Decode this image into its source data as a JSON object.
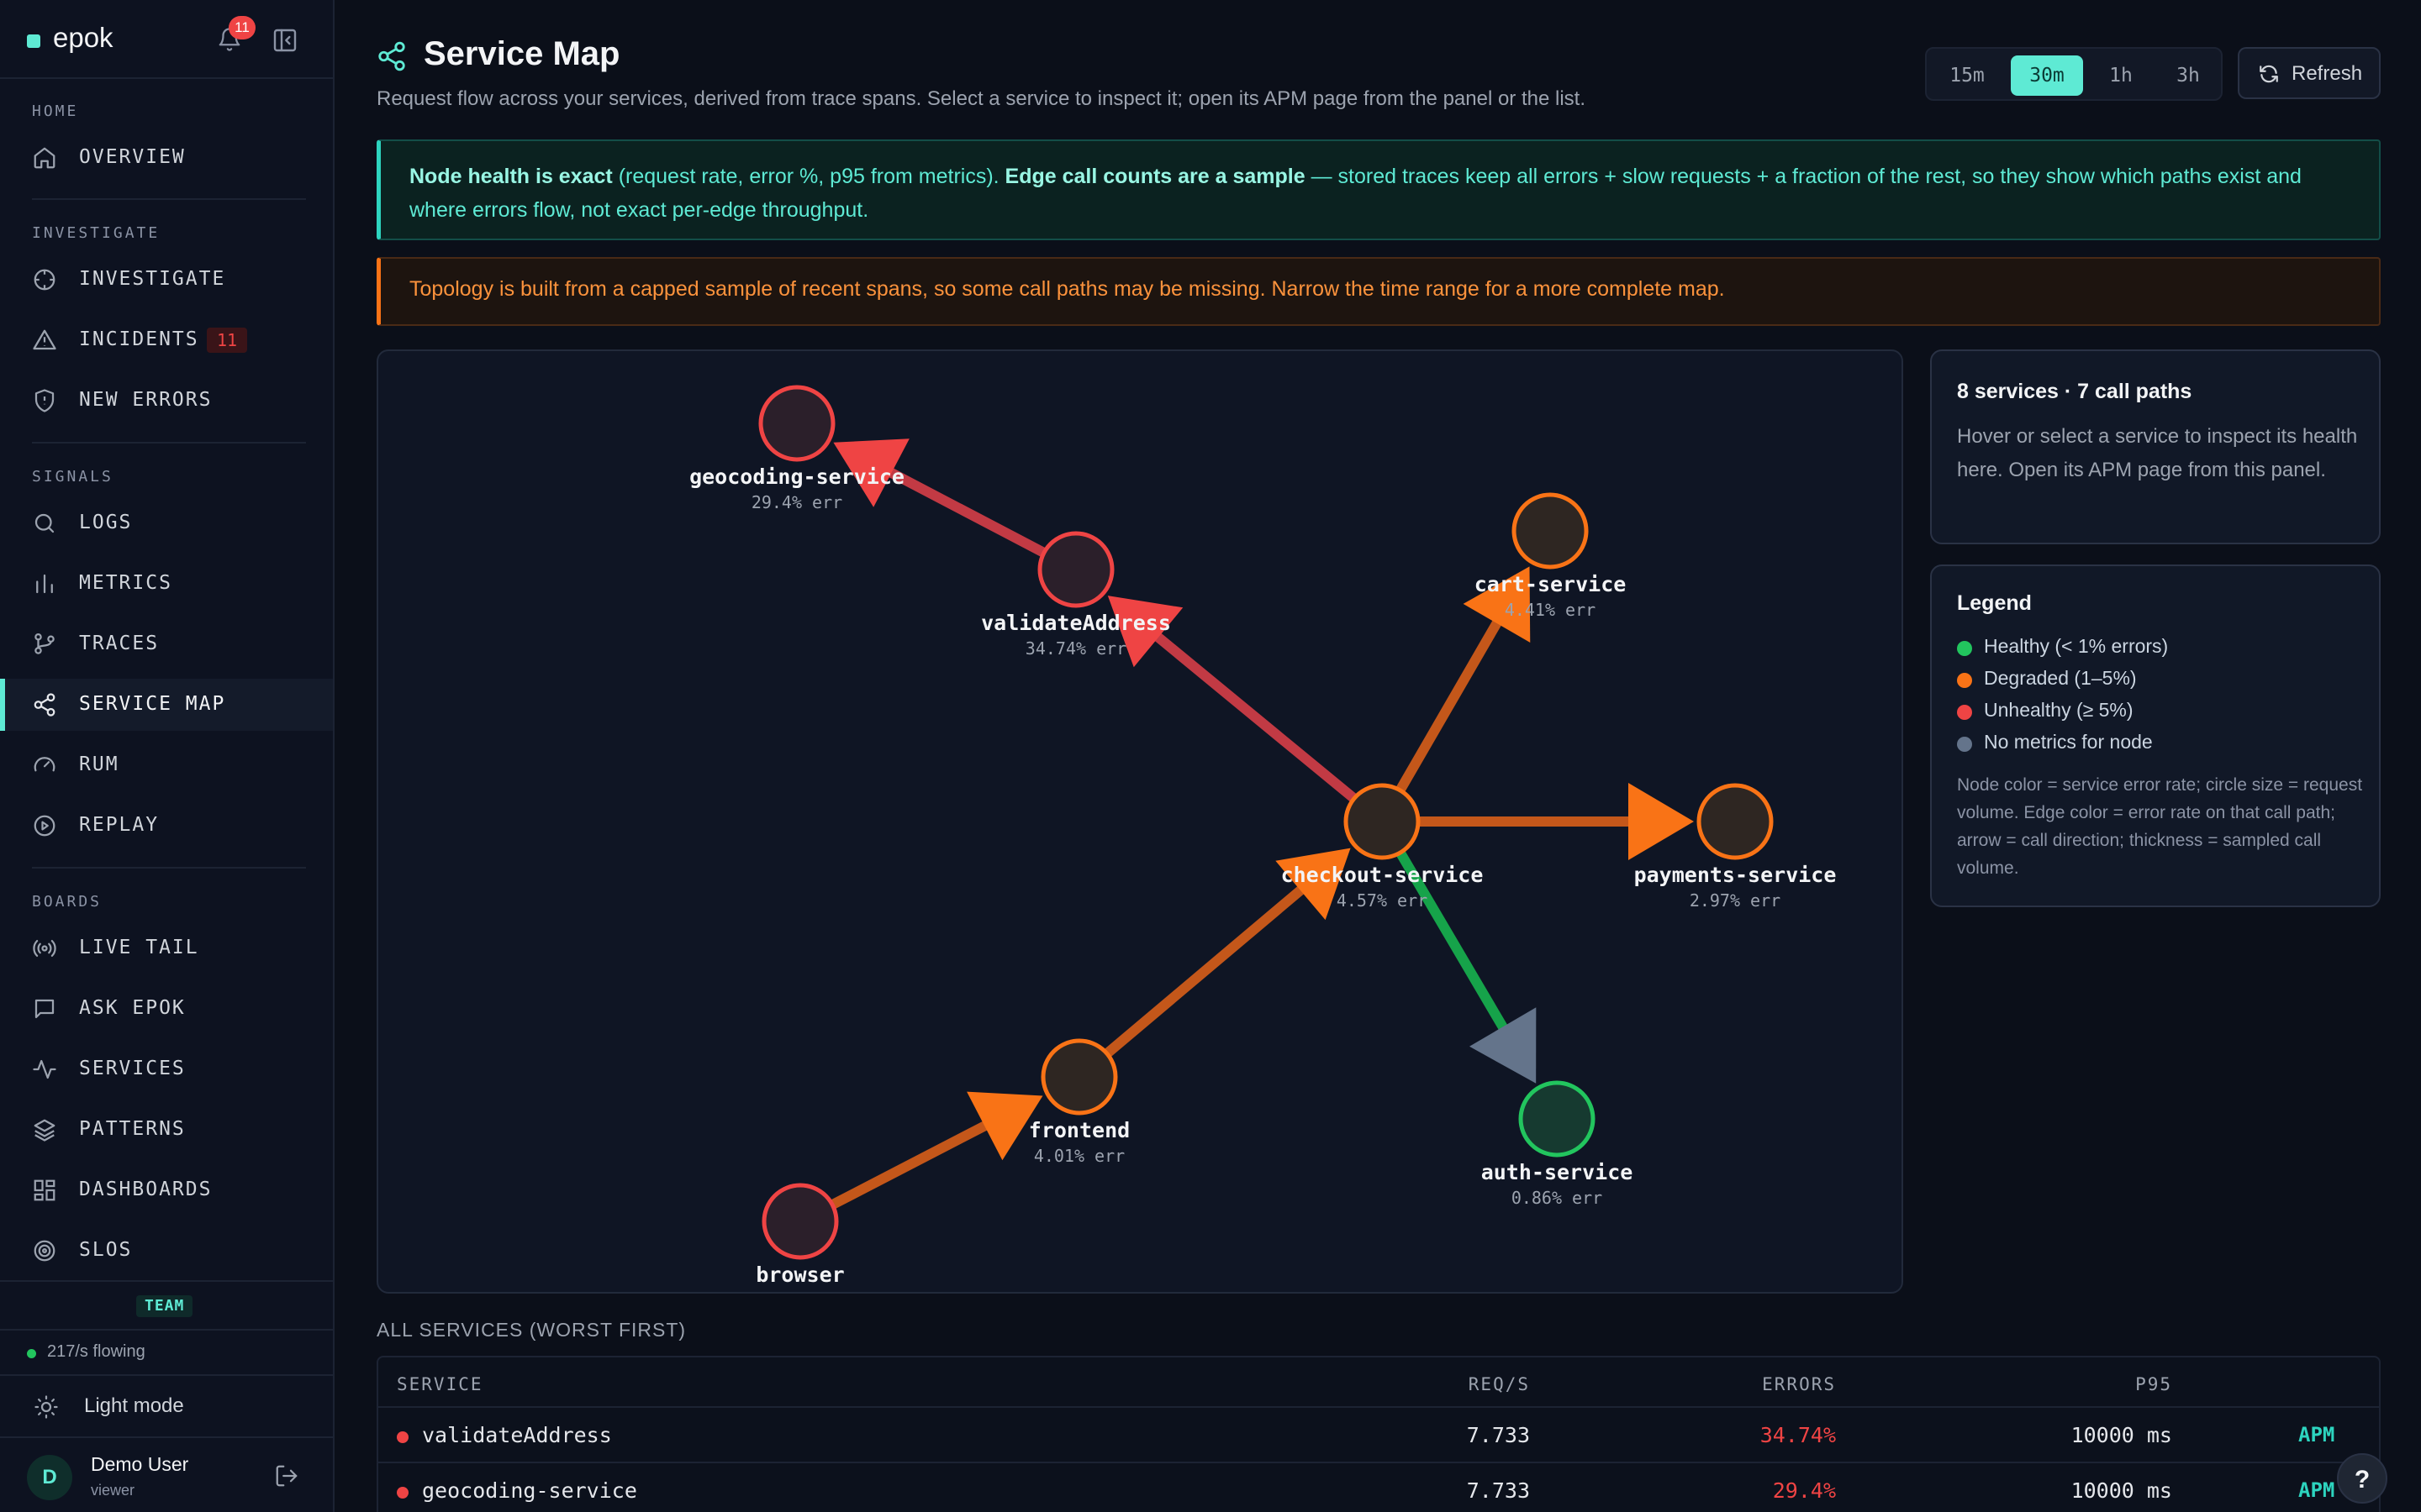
{
  "app": {
    "name": "epok",
    "notification_count": "11"
  },
  "sidebar": {
    "sections": [
      {
        "label": "HOME",
        "items": [
          {
            "label": "OVERVIEW",
            "icon": "home-icon"
          }
        ]
      },
      {
        "label": "INVESTIGATE",
        "items": [
          {
            "label": "INVESTIGATE",
            "icon": "crosshair-icon"
          },
          {
            "label": "INCIDENTS",
            "icon": "alert-triangle-icon",
            "badge": "11"
          },
          {
            "label": "NEW ERRORS",
            "icon": "shield-alert-icon"
          }
        ]
      },
      {
        "label": "SIGNALS",
        "items": [
          {
            "label": "LOGS",
            "icon": "search-icon"
          },
          {
            "label": "METRICS",
            "icon": "bar-chart-icon"
          },
          {
            "label": "TRACES",
            "icon": "git-branch-icon"
          },
          {
            "label": "SERVICE MAP",
            "icon": "share-icon",
            "active": true
          },
          {
            "label": "RUM",
            "icon": "gauge-icon"
          },
          {
            "label": "REPLAY",
            "icon": "play-circle-icon"
          }
        ]
      },
      {
        "label": "BOARDS",
        "items": [
          {
            "label": "LIVE TAIL",
            "icon": "radio-icon"
          },
          {
            "label": "ASK EPOK",
            "icon": "message-square-icon"
          },
          {
            "label": "SERVICES",
            "icon": "activity-icon"
          },
          {
            "label": "PATTERNS",
            "icon": "layers-icon"
          },
          {
            "label": "DASHBOARDS",
            "icon": "layout-grid-icon"
          },
          {
            "label": "SLOS",
            "icon": "target-icon"
          }
        ]
      }
    ],
    "team_label": "TEAM",
    "flow_status": "217/s flowing",
    "mode_toggle": "Light mode",
    "user": {
      "initial": "D",
      "name": "Demo User",
      "role": "viewer"
    }
  },
  "header": {
    "title": "Service Map",
    "subtitle": "Request flow across your services, derived from trace spans. Select a service to inspect it; open its APM page from the panel or the list.",
    "ranges": [
      "15m",
      "30m",
      "1h",
      "3h"
    ],
    "active_range": "30m",
    "refresh_label": "Refresh"
  },
  "notices": {
    "exact_strong_1": "Node health is exact",
    "exact_text_1": " (request rate, error %, p95 from metrics). ",
    "exact_strong_2": "Edge call counts are a sample",
    "exact_text_2": " — stored traces keep all errors + slow requests + a fraction of the rest, so they show which paths exist and where errors flow, not exact per-edge throughput.",
    "warning": "Topology is built from a capped sample of recent spans, so some call paths may be missing. Narrow the time range for a more complete map."
  },
  "colors": {
    "healthy": "#22c55e",
    "degraded": "#f97316",
    "unhealthy": "#ef4444",
    "no_metrics": "#64748b",
    "accent": "#5eead4"
  },
  "graph": {
    "nodes": [
      {
        "id": "geocoding-service",
        "label": "geocoding-service",
        "err": "29.4% err",
        "status": "unhealthy"
      },
      {
        "id": "validateAddress",
        "label": "validateAddress",
        "err": "34.74% err",
        "status": "unhealthy"
      },
      {
        "id": "cart-service",
        "label": "cart-service",
        "err": "4.41% err",
        "status": "degraded"
      },
      {
        "id": "checkout-service",
        "label": "checkout-service",
        "err": "4.57% err",
        "status": "degraded"
      },
      {
        "id": "payments-service",
        "label": "payments-service",
        "err": "2.97% err",
        "status": "degraded"
      },
      {
        "id": "frontend",
        "label": "frontend",
        "err": "4.01% err",
        "status": "degraded"
      },
      {
        "id": "auth-service",
        "label": "auth-service",
        "err": "0.86% err",
        "status": "healthy"
      },
      {
        "id": "browser",
        "label": "browser",
        "err": "",
        "status": "unhealthy"
      }
    ],
    "edges": [
      {
        "from": "browser",
        "to": "frontend",
        "status": "degraded"
      },
      {
        "from": "frontend",
        "to": "checkout-service",
        "status": "degraded"
      },
      {
        "from": "checkout-service",
        "to": "validateAddress",
        "status": "unhealthy"
      },
      {
        "from": "validateAddress",
        "to": "geocoding-service",
        "status": "unhealthy"
      },
      {
        "from": "checkout-service",
        "to": "cart-service",
        "status": "degraded"
      },
      {
        "from": "checkout-service",
        "to": "payments-service",
        "status": "degraded"
      },
      {
        "from": "checkout-service",
        "to": "auth-service",
        "status": "healthy",
        "arrow": "no_metrics"
      }
    ]
  },
  "info_panel": {
    "title": "8 services · 7 call paths",
    "body": "Hover or select a service to inspect its health here. Open its APM page from this panel."
  },
  "legend": {
    "title": "Legend",
    "items": [
      {
        "label": "Healthy (< 1% errors)",
        "color": "#22c55e"
      },
      {
        "label": "Degraded (1–5%)",
        "color": "#f97316"
      },
      {
        "label": "Unhealthy (≥ 5%)",
        "color": "#ef4444"
      },
      {
        "label": "No metrics for node",
        "color": "#64748b"
      }
    ],
    "note": "Node color = service error rate; circle size = request volume. Edge color = error rate on that call path; arrow = call direction; thickness = sampled call volume."
  },
  "services_list": {
    "title": "ALL SERVICES (WORST FIRST)",
    "columns": [
      "SERVICE",
      "REQ/S",
      "ERRORS",
      "P95"
    ],
    "rows": [
      {
        "service": "validateAddress",
        "req": "7.733",
        "errors": "34.74%",
        "p95": "10000 ms",
        "link": "APM"
      },
      {
        "service": "geocoding-service",
        "req": "7.733",
        "errors": "29.4%",
        "p95": "10000 ms",
        "link": "APM →"
      }
    ]
  },
  "help_label": "?"
}
